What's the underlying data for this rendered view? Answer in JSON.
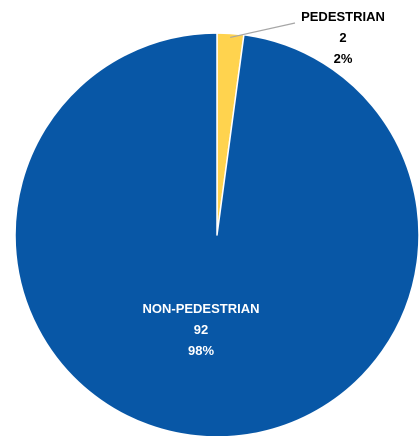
{
  "chart_data": {
    "type": "pie",
    "title": "",
    "start_angle_deg": 0,
    "direction": "clockwise",
    "slices": [
      {
        "name": "PEDESTRIAN",
        "value": 2,
        "percent_label": "2%",
        "color": "#FFD34E",
        "label_placement": "outside-callout",
        "label_color": "#000000"
      },
      {
        "name": "NON-PEDESTRIAN",
        "value": 92,
        "percent_label": "98%",
        "color": "#0857A6",
        "label_placement": "inside",
        "label_color": "#FFFFFF"
      }
    ],
    "slice_border_color": "#FFFFFF",
    "leader_line_color": "#A6A6A6"
  }
}
